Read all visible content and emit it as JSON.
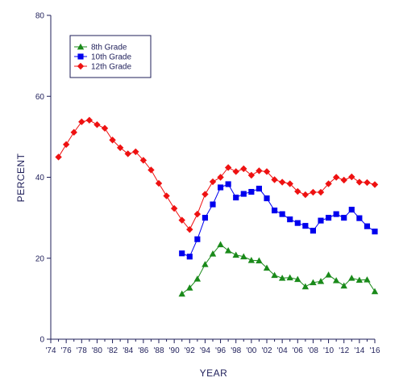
{
  "chart_data": {
    "type": "line",
    "xlabel": "YEAR",
    "ylabel": "PERCENT",
    "xlim": [
      1974,
      2016
    ],
    "ylim": [
      0,
      80
    ],
    "y_ticks": [
      0,
      20,
      40,
      60,
      80
    ],
    "x_ticks": [
      1974,
      1976,
      1978,
      1980,
      1982,
      1984,
      1986,
      1988,
      1990,
      1992,
      1994,
      1996,
      1998,
      2000,
      2002,
      2004,
      2006,
      2008,
      2010,
      2012,
      2014,
      2016
    ],
    "x_tick_labels": [
      "'74",
      "'76",
      "'78",
      "'80",
      "'82",
      "'84",
      "'86",
      "'88",
      "'90",
      "'92",
      "'94",
      "'96",
      "'98",
      "'00",
      "'02",
      "'04",
      "'06",
      "'08",
      "'10",
      "'12",
      "'14",
      "'16"
    ],
    "legend_position": "top-left",
    "grid": false,
    "series": [
      {
        "name": "8th Grade",
        "color": "#1a8a1a",
        "marker": "triangle",
        "x": [
          1991,
          1992,
          1993,
          1994,
          1995,
          1996,
          1997,
          1998,
          1999,
          2000,
          2001,
          2002,
          2003,
          2004,
          2005,
          2006,
          2007,
          2008,
          2009,
          2010,
          2011,
          2012,
          2013,
          2014,
          2015,
          2016
        ],
        "values": [
          11.2,
          12.7,
          14.9,
          18.5,
          21.1,
          23.4,
          21.9,
          20.8,
          20.4,
          19.5,
          19.4,
          17.6,
          15.8,
          15.1,
          15.2,
          14.8,
          13.0,
          14.0,
          14.3,
          15.9,
          14.5,
          13.2,
          15.1,
          14.6,
          14.7,
          11.8
        ]
      },
      {
        "name": "10th Grade",
        "color": "#0000ee",
        "marker": "square",
        "x": [
          1991,
          1992,
          1993,
          1994,
          1995,
          1996,
          1997,
          1998,
          1999,
          2000,
          2001,
          2002,
          2003,
          2004,
          2005,
          2006,
          2007,
          2008,
          2009,
          2010,
          2011,
          2012,
          2013,
          2014,
          2015,
          2016
        ],
        "values": [
          21.2,
          20.4,
          24.7,
          30.0,
          33.3,
          37.5,
          38.3,
          35.0,
          35.9,
          36.4,
          37.2,
          34.8,
          31.8,
          30.9,
          29.6,
          28.7,
          28.0,
          26.8,
          29.3,
          30.0,
          30.9,
          30.0,
          32.0,
          29.9,
          27.9,
          26.6
        ]
      },
      {
        "name": "12th Grade",
        "color": "#ee1111",
        "marker": "diamond",
        "x": [
          1975,
          1976,
          1977,
          1978,
          1979,
          1980,
          1981,
          1982,
          1983,
          1984,
          1985,
          1986,
          1987,
          1988,
          1989,
          1990,
          1991,
          1992,
          1993,
          1994,
          1995,
          1996,
          1997,
          1998,
          1999,
          2000,
          2001,
          2002,
          2003,
          2004,
          2005,
          2006,
          2007,
          2008,
          2009,
          2010,
          2011,
          2012,
          2013,
          2014,
          2015,
          2016
        ],
        "values": [
          45.0,
          48.1,
          51.1,
          53.7,
          54.1,
          53.0,
          52.1,
          49.2,
          47.3,
          45.8,
          46.3,
          44.2,
          41.8,
          38.5,
          35.4,
          32.3,
          29.4,
          27.1,
          30.9,
          35.8,
          38.9,
          40.0,
          42.4,
          41.4,
          42.1,
          40.5,
          41.6,
          41.4,
          39.4,
          38.8,
          38.4,
          36.5,
          35.7,
          36.3,
          36.3,
          38.4,
          40.0,
          39.3,
          40.1,
          38.8,
          38.7,
          38.2
        ]
      }
    ]
  }
}
